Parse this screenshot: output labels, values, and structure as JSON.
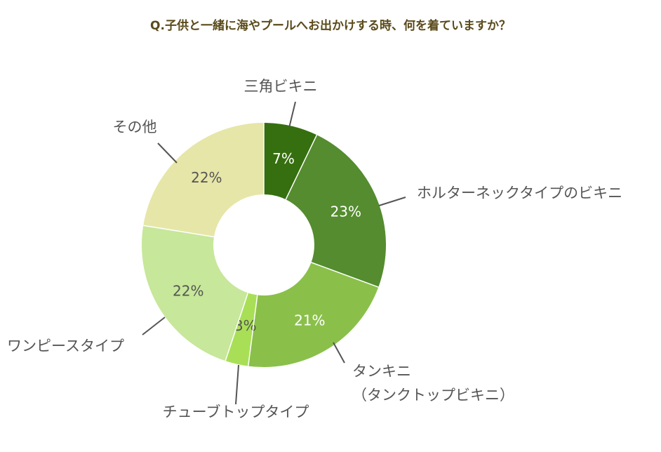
{
  "chart_data": {
    "type": "pie",
    "title": "Q.子供と一緒に海やプールへお出かけする時、何を着ていますか？",
    "donut": true,
    "slices": [
      {
        "label": [
          "三角ビキニ"
        ],
        "value": 7,
        "display": "7%",
        "color": "#366f0f",
        "text_color": "#ffffff"
      },
      {
        "label": [
          "ホルターネックタイプのビキニ"
        ],
        "value": 23,
        "display": "23%",
        "color": "#548c2f",
        "text_color": "#ffffff"
      },
      {
        "label": [
          "タンキニ",
          "（タンクトップビキニ）"
        ],
        "value": 21,
        "display": "21%",
        "color": "#8ac04a",
        "text_color": "#ffffff"
      },
      {
        "label": [
          "チューブトップタイプ"
        ],
        "value": 3,
        "display": "3%",
        "color": "#a9df57",
        "text_color": "#555555"
      },
      {
        "label": [
          "ワンピースタイプ"
        ],
        "value": 22,
        "display": "22%",
        "color": "#c7e79a",
        "text_color": "#555555"
      },
      {
        "label": [
          "その他"
        ],
        "value": 22,
        "display": "22%",
        "color": "#e6e6a8",
        "text_color": "#555555"
      }
    ]
  }
}
